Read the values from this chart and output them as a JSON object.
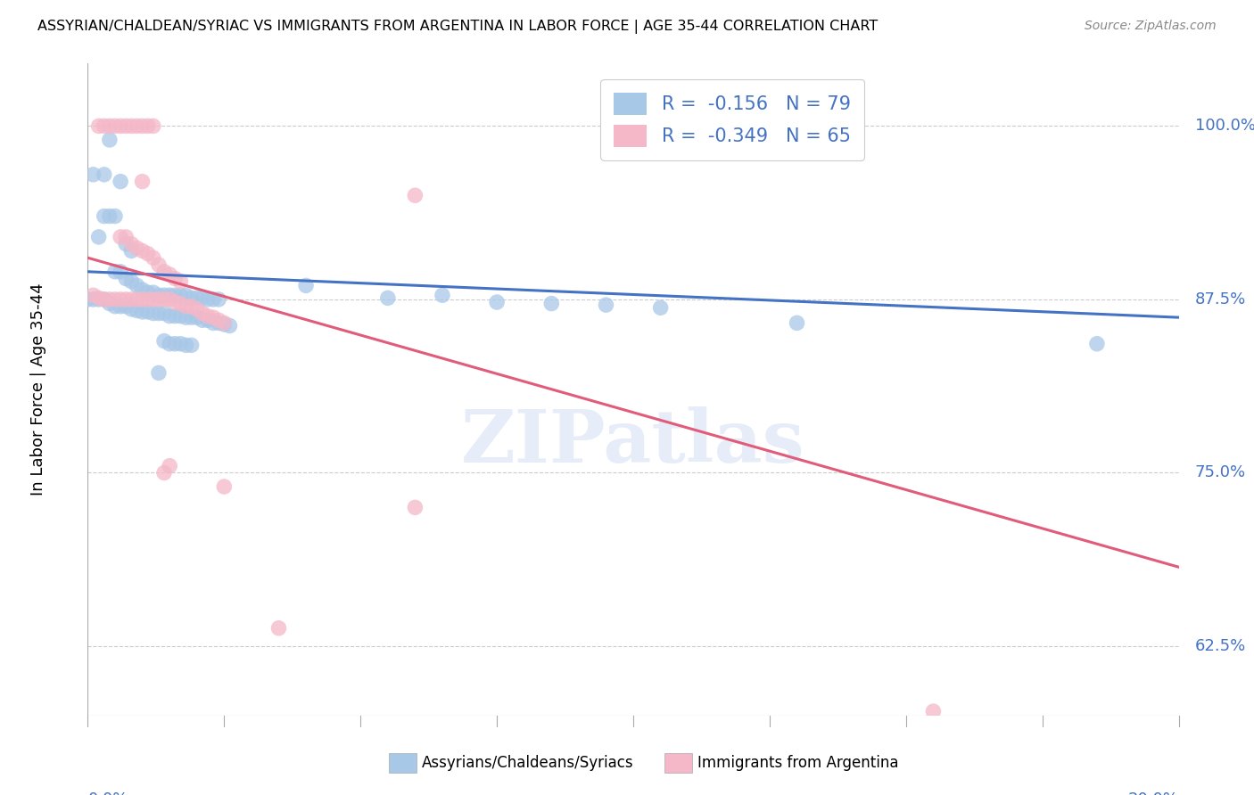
{
  "title": "ASSYRIAN/CHALDEAN/SYRIAC VS IMMIGRANTS FROM ARGENTINA IN LABOR FORCE | AGE 35-44 CORRELATION CHART",
  "source": "Source: ZipAtlas.com",
  "ylabel": "In Labor Force | Age 35-44",
  "ytick_labels": [
    "62.5%",
    "75.0%",
    "87.5%",
    "100.0%"
  ],
  "ytick_values": [
    0.625,
    0.75,
    0.875,
    1.0
  ],
  "xlim": [
    0.0,
    0.2
  ],
  "ylim": [
    0.575,
    1.045
  ],
  "legend_r_blue": "-0.156",
  "legend_n_blue": "79",
  "legend_r_pink": "-0.349",
  "legend_n_pink": "65",
  "blue_color": "#a8c8e8",
  "pink_color": "#f4b8c8",
  "trendline_blue": "#4472c4",
  "trendline_pink": "#e05c7a",
  "watermark": "ZIPatlas",
  "blue_scatter": [
    [
      0.001,
      0.965
    ],
    [
      0.002,
      0.92
    ],
    [
      0.003,
      0.965
    ],
    [
      0.004,
      0.99
    ],
    [
      0.005,
      0.935
    ],
    [
      0.006,
      0.96
    ],
    [
      0.003,
      0.935
    ],
    [
      0.004,
      0.935
    ],
    [
      0.007,
      0.915
    ],
    [
      0.008,
      0.91
    ],
    [
      0.005,
      0.895
    ],
    [
      0.006,
      0.895
    ],
    [
      0.007,
      0.89
    ],
    [
      0.008,
      0.888
    ],
    [
      0.009,
      0.885
    ],
    [
      0.01,
      0.882
    ],
    [
      0.011,
      0.88
    ],
    [
      0.012,
      0.88
    ],
    [
      0.013,
      0.878
    ],
    [
      0.014,
      0.878
    ],
    [
      0.015,
      0.878
    ],
    [
      0.016,
      0.878
    ],
    [
      0.017,
      0.878
    ],
    [
      0.018,
      0.878
    ],
    [
      0.019,
      0.876
    ],
    [
      0.02,
      0.876
    ],
    [
      0.021,
      0.876
    ],
    [
      0.022,
      0.875
    ],
    [
      0.023,
      0.875
    ],
    [
      0.024,
      0.875
    ],
    [
      0.0,
      0.875
    ],
    [
      0.001,
      0.875
    ],
    [
      0.002,
      0.875
    ],
    [
      0.003,
      0.875
    ],
    [
      0.004,
      0.872
    ],
    [
      0.005,
      0.87
    ],
    [
      0.006,
      0.87
    ],
    [
      0.007,
      0.87
    ],
    [
      0.008,
      0.868
    ],
    [
      0.009,
      0.867
    ],
    [
      0.01,
      0.866
    ],
    [
      0.011,
      0.866
    ],
    [
      0.012,
      0.865
    ],
    [
      0.013,
      0.865
    ],
    [
      0.014,
      0.865
    ],
    [
      0.015,
      0.863
    ],
    [
      0.016,
      0.863
    ],
    [
      0.017,
      0.863
    ],
    [
      0.018,
      0.862
    ],
    [
      0.019,
      0.862
    ],
    [
      0.02,
      0.862
    ],
    [
      0.021,
      0.86
    ],
    [
      0.022,
      0.86
    ],
    [
      0.023,
      0.858
    ],
    [
      0.024,
      0.858
    ],
    [
      0.025,
      0.857
    ],
    [
      0.026,
      0.856
    ],
    [
      0.014,
      0.845
    ],
    [
      0.015,
      0.843
    ],
    [
      0.016,
      0.843
    ],
    [
      0.017,
      0.843
    ],
    [
      0.018,
      0.842
    ],
    [
      0.019,
      0.842
    ],
    [
      0.013,
      0.822
    ],
    [
      0.04,
      0.885
    ],
    [
      0.055,
      0.876
    ],
    [
      0.065,
      0.878
    ],
    [
      0.075,
      0.873
    ],
    [
      0.085,
      0.872
    ],
    [
      0.095,
      0.871
    ],
    [
      0.105,
      0.869
    ],
    [
      0.13,
      0.858
    ],
    [
      0.185,
      0.843
    ]
  ],
  "pink_scatter": [
    [
      0.002,
      1.0
    ],
    [
      0.003,
      1.0
    ],
    [
      0.004,
      1.0
    ],
    [
      0.005,
      1.0
    ],
    [
      0.006,
      1.0
    ],
    [
      0.007,
      1.0
    ],
    [
      0.008,
      1.0
    ],
    [
      0.009,
      1.0
    ],
    [
      0.01,
      1.0
    ],
    [
      0.011,
      1.0
    ],
    [
      0.012,
      1.0
    ],
    [
      0.01,
      0.96
    ],
    [
      0.006,
      0.92
    ],
    [
      0.007,
      0.92
    ],
    [
      0.008,
      0.915
    ],
    [
      0.009,
      0.912
    ],
    [
      0.01,
      0.91
    ],
    [
      0.011,
      0.908
    ],
    [
      0.012,
      0.905
    ],
    [
      0.013,
      0.9
    ],
    [
      0.014,
      0.895
    ],
    [
      0.015,
      0.893
    ],
    [
      0.016,
      0.89
    ],
    [
      0.017,
      0.888
    ],
    [
      0.001,
      0.878
    ],
    [
      0.002,
      0.876
    ],
    [
      0.003,
      0.875
    ],
    [
      0.004,
      0.875
    ],
    [
      0.005,
      0.875
    ],
    [
      0.006,
      0.875
    ],
    [
      0.007,
      0.875
    ],
    [
      0.008,
      0.875
    ],
    [
      0.009,
      0.875
    ],
    [
      0.01,
      0.875
    ],
    [
      0.011,
      0.875
    ],
    [
      0.012,
      0.875
    ],
    [
      0.013,
      0.875
    ],
    [
      0.014,
      0.875
    ],
    [
      0.015,
      0.875
    ],
    [
      0.016,
      0.873
    ],
    [
      0.017,
      0.872
    ],
    [
      0.018,
      0.87
    ],
    [
      0.019,
      0.87
    ],
    [
      0.02,
      0.868
    ],
    [
      0.021,
      0.865
    ],
    [
      0.022,
      0.863
    ],
    [
      0.023,
      0.862
    ],
    [
      0.024,
      0.86
    ],
    [
      0.025,
      0.858
    ],
    [
      0.014,
      0.75
    ],
    [
      0.015,
      0.755
    ],
    [
      0.025,
      0.74
    ],
    [
      0.06,
      0.725
    ],
    [
      0.035,
      0.638
    ],
    [
      0.06,
      0.95
    ],
    [
      0.155,
      0.578
    ]
  ],
  "blue_trend_x": [
    0.0,
    0.2
  ],
  "blue_trend_y": [
    0.895,
    0.862
  ],
  "pink_trend_x": [
    0.0,
    0.2
  ],
  "pink_trend_y": [
    0.905,
    0.682
  ],
  "xtick_positions": [
    0.0,
    0.025,
    0.05,
    0.075,
    0.1,
    0.125,
    0.15,
    0.175,
    0.2
  ],
  "bottom_legend": [
    {
      "label": "Assyrians/Chaldeans/Syriacs",
      "color": "#a8c8e8"
    },
    {
      "label": "Immigrants from Argentina",
      "color": "#f4b8c8"
    }
  ]
}
